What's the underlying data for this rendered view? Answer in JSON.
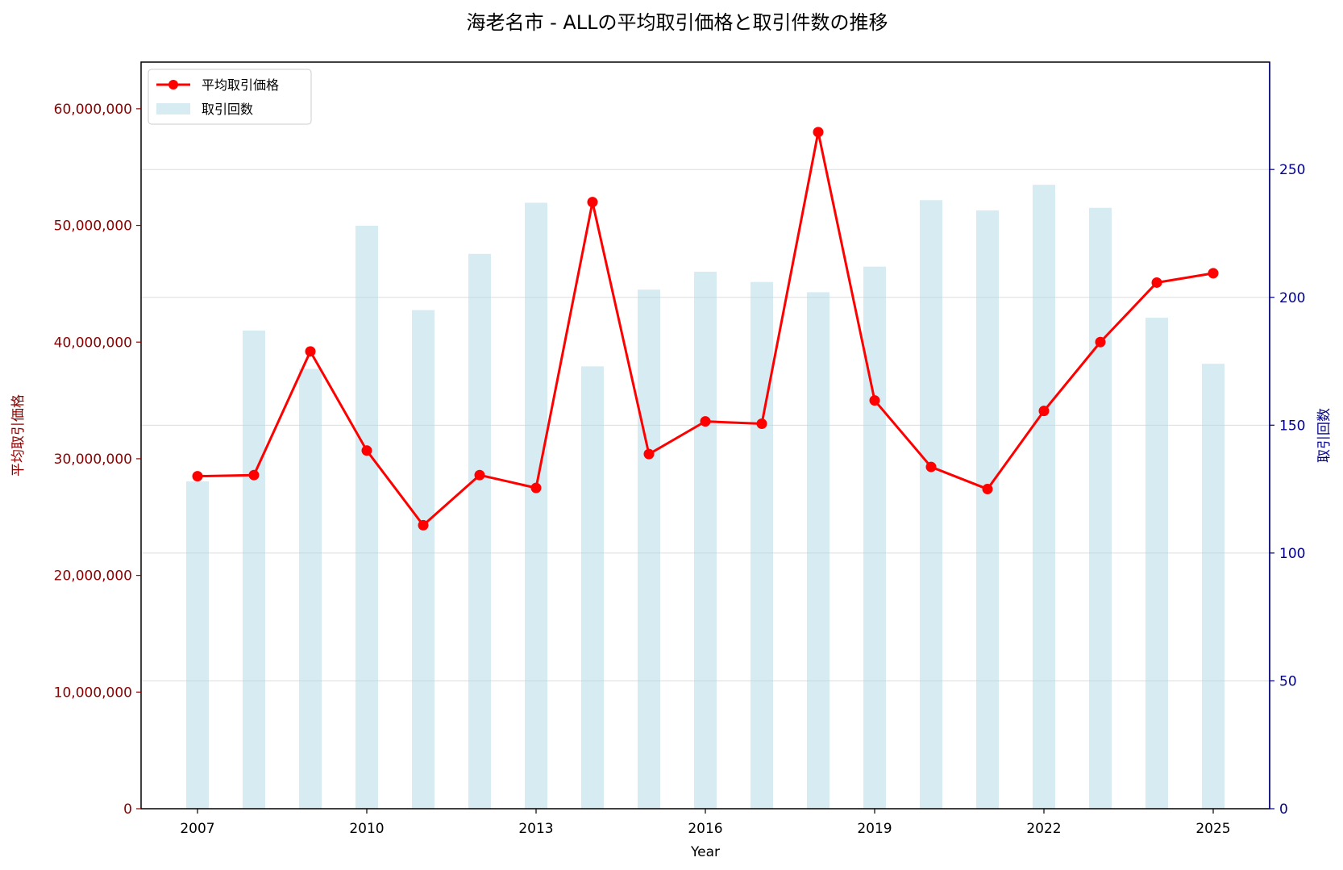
{
  "chart_data": {
    "type": "bar+line",
    "title": "海老名市 - ALLの平均取引価格と取引件数の推移",
    "xlabel": "Year",
    "ylabel_left": "平均取引価格",
    "ylabel_right": "取引回数",
    "x_ticks": [
      "2007",
      "2010",
      "2013",
      "2016",
      "2019",
      "2022",
      "2025"
    ],
    "left_axis": {
      "ylim": [
        0,
        64000000
      ],
      "ticks": [
        0,
        10000000,
        20000000,
        30000000,
        40000000,
        50000000,
        60000000
      ],
      "tick_labels": [
        "0",
        "10,000,000",
        "20,000,000",
        "30,000,000",
        "40,000,000",
        "50,000,000",
        "60,000,000"
      ]
    },
    "right_axis": {
      "ylim": [
        0,
        292
      ],
      "ticks": [
        0,
        50,
        100,
        150,
        200,
        250
      ],
      "tick_labels": [
        "0",
        "50",
        "100",
        "150",
        "200",
        "250"
      ]
    },
    "grid": "horizontal, right axis ticks",
    "legend_position": "top-left",
    "years": [
      2007,
      2008,
      2009,
      2010,
      2011,
      2012,
      2013,
      2014,
      2015,
      2016,
      2017,
      2018,
      2019,
      2020,
      2021,
      2022,
      2023,
      2024,
      2025
    ],
    "series": [
      {
        "name": "平均取引価格",
        "kind": "line",
        "axis": "left",
        "color": "#ff0000",
        "values": [
          28500000,
          28600000,
          39200000,
          30700000,
          24300000,
          28600000,
          27500000,
          52000000,
          30400000,
          33200000,
          33000000,
          58000000,
          35000000,
          29300000,
          27400000,
          34100000,
          40000000,
          45100000,
          45900000
        ]
      },
      {
        "name": "取引回数",
        "kind": "bar",
        "axis": "right",
        "color": "#add8e6",
        "values": [
          128,
          187,
          172,
          228,
          195,
          217,
          237,
          173,
          203,
          210,
          206,
          202,
          212,
          238,
          234,
          244,
          235,
          192,
          174
        ]
      }
    ],
    "colors": {
      "left_axis": "#8b0000",
      "right_axis": "#00008b"
    }
  }
}
